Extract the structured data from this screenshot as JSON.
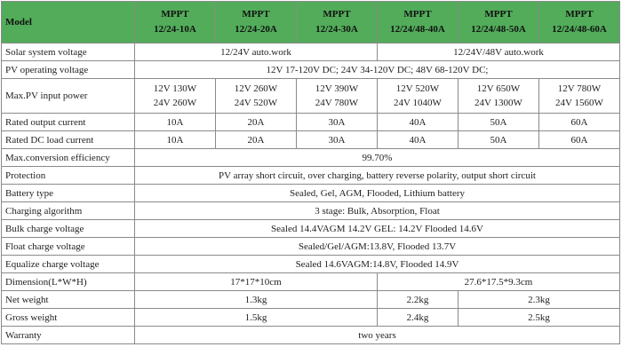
{
  "table": {
    "header": {
      "label": "Model",
      "models": [
        [
          "MPPT",
          "12/24-10A"
        ],
        [
          "MPPT",
          "12/24-20A"
        ],
        [
          "MPPT",
          "12/24-30A"
        ],
        [
          "MPPT",
          "12/24/48-40A"
        ],
        [
          "MPPT",
          "12/24/48-50A"
        ],
        [
          "MPPT",
          "12/24/48-60A"
        ]
      ]
    },
    "rows": [
      {
        "label": "Solar system voltage",
        "cells": [
          "12/24V auto.work",
          "12/24V/48V auto.work"
        ]
      },
      {
        "label": "PV operating voltage",
        "cells": [
          "12V 17-120V DC; 24V 34-120V DC; 48V 68-120V DC;"
        ]
      },
      {
        "label": "Max.PV input power",
        "cells": [
          [
            "12V 130W",
            "24V 260W"
          ],
          [
            "12V 260W",
            "24V 520W"
          ],
          [
            "12V 390W",
            "24V 780W"
          ],
          [
            "12V 520W",
            "24V 1040W"
          ],
          [
            "12V 650W",
            "24V 1300W"
          ],
          [
            "12V 780W",
            "24V 1560W"
          ]
        ]
      },
      {
        "label": "Rated output current",
        "cells": [
          "10A",
          "20A",
          "30A",
          "40A",
          "50A",
          "60A"
        ]
      },
      {
        "label": "Rated DC load current",
        "cells": [
          "10A",
          "20A",
          "30A",
          "40A",
          "50A",
          "60A"
        ]
      },
      {
        "label": "Max.conversion efficiency",
        "cells": [
          "99.70%"
        ]
      },
      {
        "label": "Protection",
        "cells": [
          "PV array short circuit, over charging, battery reverse polarity, output short circuit"
        ]
      },
      {
        "label": "Battery type",
        "cells": [
          "Sealed, Gel, AGM, Flooded, Lithium battery"
        ]
      },
      {
        "label": "Charging algorithm",
        "cells": [
          "3 stage: Bulk, Absorption, Float"
        ]
      },
      {
        "label": "Bulk charge voltage",
        "cells": [
          "Sealed 14.4VAGM 14.2V GEL: 14.2V Flooded 14.6V"
        ]
      },
      {
        "label": "Float charge voltage",
        "cells": [
          "Sealed/Gel/AGM:13.8V, Flooded 13.7V"
        ]
      },
      {
        "label": "Equalize charge voltage",
        "cells": [
          "Sealed 14.6VAGM:14.8V, Flooded 14.9V"
        ]
      },
      {
        "label": "Dimension(L*W*H)",
        "cells": [
          "17*17*10cm",
          "27.6*17.5*9.3cm"
        ]
      },
      {
        "label": "Net weight",
        "cells": [
          "1.3kg",
          "2.2kg",
          "2.3kg"
        ]
      },
      {
        "label": "Gross weight",
        "cells": [
          "1.5kg",
          "2.4kg",
          "2.5kg"
        ]
      },
      {
        "label": "Warranty",
        "cells": [
          "two years"
        ]
      }
    ]
  }
}
